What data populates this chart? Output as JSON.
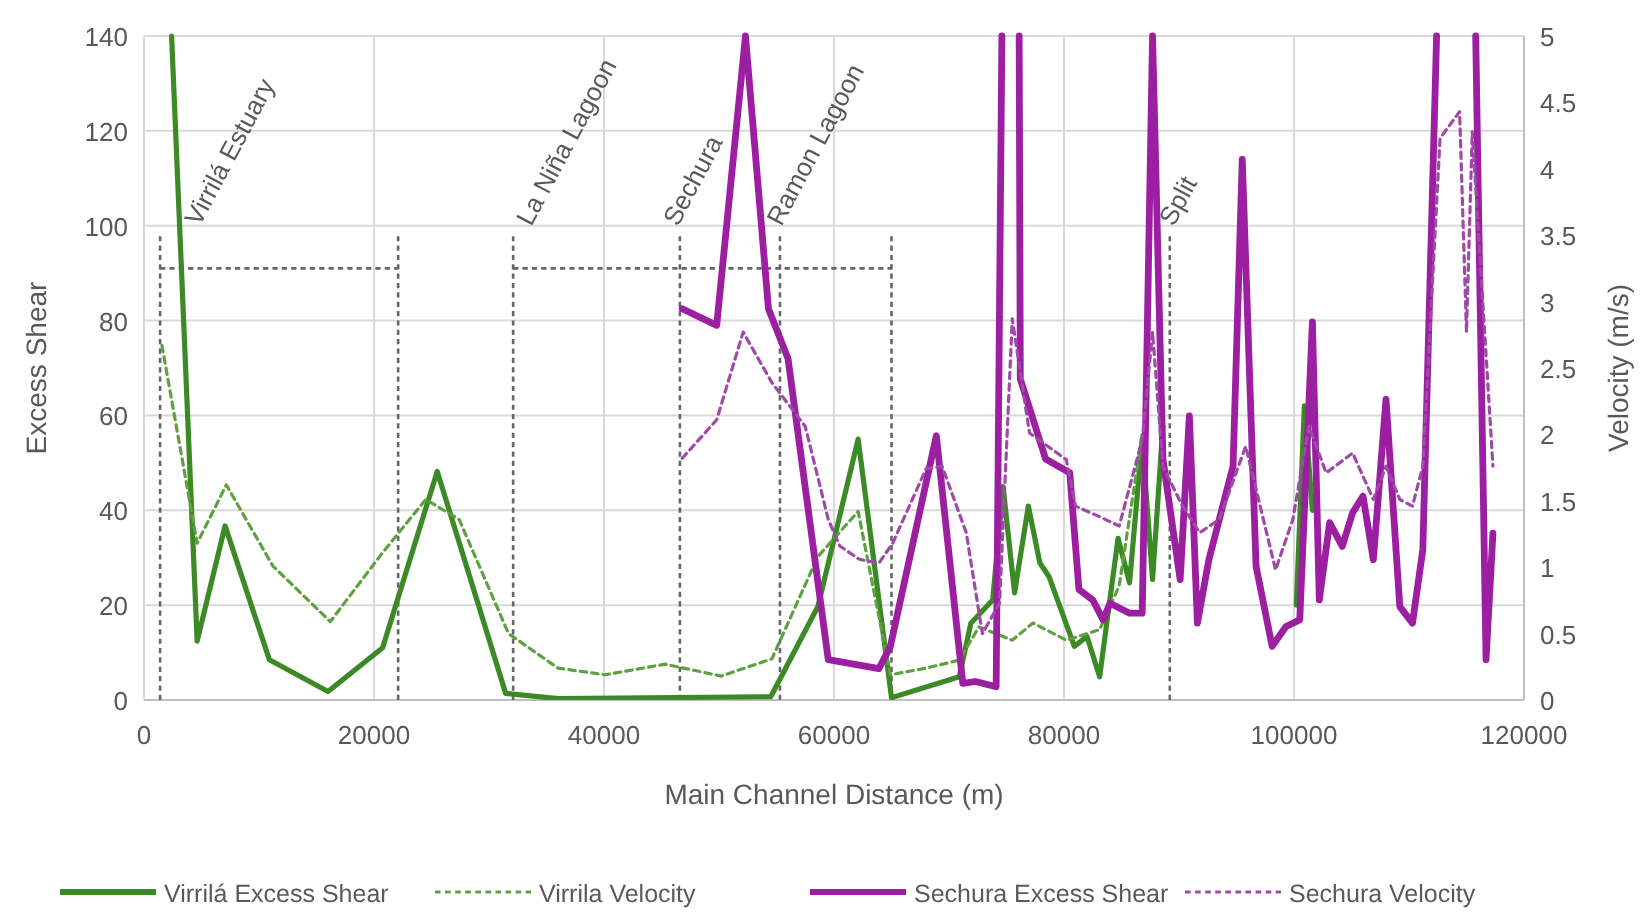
{
  "chart_data": {
    "type": "line",
    "xlabel": "Main Channel Distance (m)",
    "ylabel": "Excess Shear",
    "y2label": "Velocity (m/s)",
    "xlim": [
      0,
      120000
    ],
    "xticks": [
      0,
      20000,
      40000,
      60000,
      80000,
      100000,
      120000
    ],
    "ylim": [
      0,
      140
    ],
    "yticks": [
      0,
      20,
      40,
      60,
      80,
      100,
      120,
      140
    ],
    "y2lim": [
      0,
      5
    ],
    "y2ticks": [
      0,
      0.5,
      1,
      1.5,
      2,
      2.5,
      3,
      3.5,
      4,
      4.5,
      5
    ],
    "grid": true,
    "legend": "bottom",
    "ref_lines": [
      {
        "axis": "x",
        "value": 1400,
        "label": "Virrilá Estuary",
        "color": "#666666",
        "line_style": "dashed"
      },
      {
        "axis": "x",
        "value": 22100,
        "color": "#666666",
        "line_style": "dashed"
      },
      {
        "axis": "x",
        "value": 32100,
        "label": "La Niña Lagoon",
        "color": "#666666",
        "line_style": "dashed"
      },
      {
        "axis": "x",
        "value": 46600,
        "label": "Sechura",
        "color": "#666666",
        "line_style": "dashed"
      },
      {
        "axis": "x",
        "value": 55300,
        "label": "Ramon Lagoon",
        "color": "#666666",
        "line_style": "dashed"
      },
      {
        "axis": "x",
        "value": 65000,
        "color": "#666666",
        "line_style": "dashed"
      },
      {
        "axis": "x",
        "value": 89200,
        "label": "Split",
        "color": "#666666",
        "line_style": "dashed"
      }
    ],
    "series": [
      {
        "name": "Virrilá Excess Shear",
        "color": "#3b8a26",
        "line_style": "solid",
        "x": [
          2400,
          4620,
          7050,
          10900,
          16000,
          20750,
          25500,
          31450,
          36000,
          54500,
          58600,
          62100,
          65000,
          70900,
          71900,
          73800,
          74700,
          75700,
          76900,
          77900,
          78700,
          80900,
          82000,
          83100,
          84700,
          85700,
          86800,
          87700,
          88600,
          95000,
          100200,
          100900,
          101600
        ],
        "values": [
          140,
          12.4,
          36.7,
          8.5,
          1.8,
          11,
          48.2,
          1.4,
          0.3,
          0.7,
          19.7,
          55,
          0.5,
          4.9,
          16.2,
          21.1,
          45,
          22.6,
          40.9,
          28.9,
          26,
          11.3,
          13.4,
          4.9,
          34.1,
          24.7,
          55,
          25.4,
          57.8,
          null,
          20,
          62,
          40
        ]
      },
      {
        "name": "Virrila Velocity",
        "color": "#5fa040",
        "line_style": "dashed",
        "axis": "y2",
        "x": [
          1560,
          4620,
          7160,
          11200,
          16200,
          20750,
          24500,
          27400,
          31700,
          36000,
          40100,
          45300,
          50200,
          54600,
          58600,
          62100,
          64900,
          68000,
          70900,
          72600,
          75500,
          77300,
          80200,
          83100,
          84800,
          86800
        ],
        "values": [
          2.67,
          1.18,
          1.62,
          1.01,
          0.59,
          1.11,
          1.51,
          1.36,
          0.5,
          0.24,
          0.19,
          0.27,
          0.18,
          0.31,
          1.08,
          1.42,
          0.19,
          0.24,
          0.3,
          0.55,
          0.45,
          0.58,
          0.45,
          0.53,
          0.86,
          2.0
        ]
      },
      {
        "name": "Sechura Excess Shear",
        "color": "#9b1fa0",
        "line_style": "solid",
        "x": [
          46800,
          49800,
          52300,
          54300,
          56000,
          59500,
          63900,
          64900,
          68900,
          71200,
          72300,
          74100,
          74600,
          75300,
          76100,
          76200,
          78400,
          80500,
          81300,
          82500,
          83400,
          84000,
          85700,
          86800,
          87700,
          88600,
          90100,
          90900,
          91600,
          92600,
          94700,
          95500,
          96700,
          98100,
          99300,
          100500,
          101600,
          102200,
          103100,
          104200,
          105100,
          106000,
          106900,
          108000,
          109200,
          110300,
          111200,
          112400,
          113500,
          115800,
          116700,
          117300
        ],
        "values": [
          82.5,
          79,
          140,
          82.5,
          72,
          8.5,
          6.6,
          11.3,
          55.7,
          3.5,
          3.9,
          2.8,
          140,
          null,
          140,
          67.7,
          50.8,
          47.9,
          23.3,
          21.1,
          16.9,
          20.4,
          18.3,
          18.3,
          140,
          50.8,
          25.4,
          59.9,
          16.2,
          29.6,
          49.3,
          114,
          28.2,
          11.3,
          15.5,
          16.9,
          79.7,
          21.1,
          37.4,
          32.4,
          39.5,
          43,
          29.6,
          63.4,
          19.7,
          16.2,
          31.7,
          140,
          null,
          140,
          8.5,
          35.2
        ]
      },
      {
        "name": "Sechura Velocity",
        "color": "#a04aa8",
        "line_style": "dashed",
        "axis": "y2",
        "x": [
          46800,
          49800,
          52100,
          54600,
          57500,
          59500,
          60500,
          62200,
          63900,
          65100,
          68000,
          69400,
          71500,
          72900,
          74400,
          75500,
          77000,
          80200,
          81000,
          83100,
          84800,
          86800,
          87700,
          88600,
          90300,
          91800,
          93500,
          95800,
          98400,
          99900,
          101300,
          102800,
          105100,
          106900,
          108000,
          109200,
          110300,
          111200,
          112700,
          114400,
          115000,
          115500,
          117300
        ],
        "values": [
          1.82,
          2.11,
          2.77,
          2.39,
          2.06,
          1.36,
          1.16,
          1.06,
          1.03,
          1.18,
          1.74,
          1.76,
          1.26,
          0.5,
          0.73,
          2.87,
          2.01,
          1.81,
          1.46,
          1.38,
          1.31,
          1.96,
          2.77,
          1.76,
          1.46,
          1.26,
          1.36,
          1.91,
          0.98,
          1.36,
          2.06,
          1.71,
          1.86,
          1.51,
          1.76,
          1.51,
          1.46,
          1.76,
          4.23,
          4.43,
          2.77,
          4.28,
          1.76
        ]
      }
    ]
  }
}
